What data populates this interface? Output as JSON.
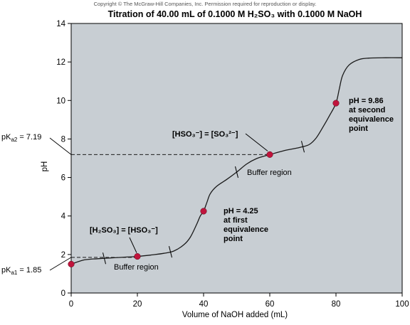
{
  "copyright": "Copyright © The McGraw-Hill Companies, Inc. Permission required for reproduction or display.",
  "chart_data": {
    "type": "line",
    "title": "Titration of 40.00 mL of 0.1000 M H₂SO₃ with 0.1000 M NaOH",
    "xlabel": "Volume of NaOH added (mL)",
    "ylabel": "pH",
    "xlim": [
      0,
      100
    ],
    "ylim": [
      0,
      14
    ],
    "x_ticks": [
      0,
      20,
      40,
      60,
      80,
      100
    ],
    "y_ticks": [
      0,
      2,
      4,
      6,
      8,
      10,
      12,
      14
    ],
    "grid": false,
    "curve": [
      [
        0,
        1.5
      ],
      [
        4,
        1.72
      ],
      [
        8,
        1.78
      ],
      [
        12,
        1.82
      ],
      [
        16,
        1.86
      ],
      [
        20,
        1.9
      ],
      [
        24,
        1.97
      ],
      [
        28,
        2.06
      ],
      [
        31,
        2.18
      ],
      [
        34,
        2.5
      ],
      [
        36,
        2.9
      ],
      [
        38,
        3.6
      ],
      [
        39,
        4.0
      ],
      [
        40,
        4.25
      ],
      [
        41,
        4.7
      ],
      [
        42,
        5.15
      ],
      [
        44,
        5.55
      ],
      [
        47,
        5.9
      ],
      [
        50,
        6.28
      ],
      [
        53,
        6.7
      ],
      [
        56,
        6.98
      ],
      [
        60,
        7.19
      ],
      [
        64,
        7.38
      ],
      [
        68,
        7.52
      ],
      [
        70,
        7.6
      ],
      [
        72,
        7.72
      ],
      [
        74,
        8.05
      ],
      [
        76,
        8.6
      ],
      [
        78,
        9.2
      ],
      [
        80,
        9.86
      ],
      [
        81,
        10.6
      ],
      [
        82,
        11.3
      ],
      [
        84,
        11.85
      ],
      [
        87,
        12.13
      ],
      [
        90,
        12.2
      ],
      [
        95,
        12.22
      ],
      [
        100,
        12.22
      ]
    ],
    "points": [
      {
        "x": 0,
        "y": 1.5
      },
      {
        "x": 20,
        "y": 1.9
      },
      {
        "x": 40,
        "y": 4.25
      },
      {
        "x": 60,
        "y": 7.19
      },
      {
        "x": 80,
        "y": 9.86
      }
    ],
    "buffer_ticks": [
      10,
      30,
      50,
      70
    ],
    "pKa_lines": [
      {
        "y": 1.85,
        "x_end": 20,
        "label": "pK",
        "sub": "a1",
        "value": " = 1.85"
      },
      {
        "y": 7.19,
        "x_end": 60,
        "label": "pK",
        "sub": "a2",
        "value": " = 7.19"
      }
    ],
    "annotations": [
      {
        "id": "first-equivalence",
        "lines": [
          "pH = 4.25",
          "at first",
          "equivalence",
          "point"
        ],
        "bold": true
      },
      {
        "id": "second-equivalence",
        "lines": [
          "pH = 9.86",
          "at second",
          "equivalence",
          "point"
        ],
        "bold": true
      },
      {
        "id": "buffer-region-1",
        "lines": [
          "Buffer region"
        ],
        "bold": false
      },
      {
        "id": "buffer-region-2",
        "lines": [
          "Buffer region"
        ],
        "bold": false
      },
      {
        "id": "h2so3-eq-hso3",
        "lines": [
          "[H₂SO₃] = [HSO₃⁻]"
        ],
        "bold": true
      },
      {
        "id": "hso3-eq-so3",
        "lines": [
          "[HSO₃⁻] = [SO₃²⁻]"
        ],
        "bold": true
      }
    ],
    "colors": {
      "plot_bg": "#c8ced3",
      "curve": "#1a1a1a",
      "point": "#c0143c"
    }
  }
}
